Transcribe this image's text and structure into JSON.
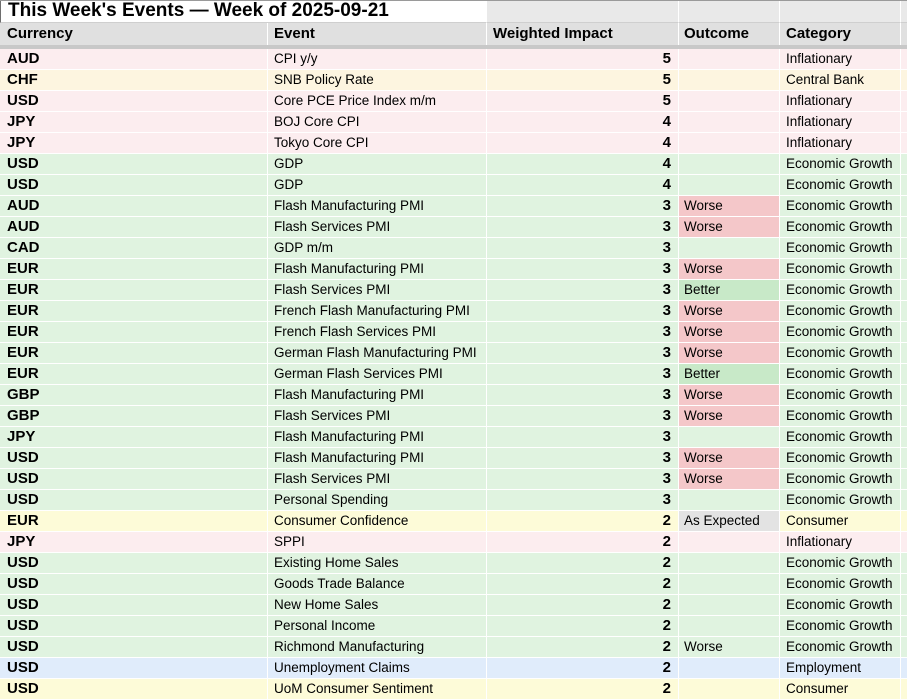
{
  "title": "This Week's Events — Week of 2025-09-21",
  "columns": [
    "Currency",
    "Event",
    "Weighted Impact",
    "Outcome",
    "Category"
  ],
  "colors": {
    "category_row": {
      "Inflationary": "#fcedef",
      "Central Bank": "#fdf5e0",
      "Economic Growth": "#e0f3e0",
      "Consumer": "#fdfbd8",
      "Employment": "#e0ecfb"
    },
    "outcome_badge": {
      "Worse": "#f4c7c9",
      "Better": "#c8e9c8",
      "As Expected": "#e3e3e3"
    },
    "header_bg": "#e0e0e0",
    "title_spacer_bg": "#e9e9e9",
    "divider": "#c8c8c8"
  },
  "rows": [
    {
      "currency": "AUD",
      "event": "CPI y/y",
      "impact": "5",
      "outcome": "",
      "category": "Inflationary"
    },
    {
      "currency": "CHF",
      "event": "SNB Policy Rate",
      "impact": "5",
      "outcome": "",
      "category": "Central Bank"
    },
    {
      "currency": "USD",
      "event": "Core PCE Price Index m/m",
      "impact": "5",
      "outcome": "",
      "category": "Inflationary"
    },
    {
      "currency": "JPY",
      "event": "BOJ Core CPI",
      "impact": "4",
      "outcome": "",
      "category": "Inflationary"
    },
    {
      "currency": "JPY",
      "event": "Tokyo Core CPI",
      "impact": "4",
      "outcome": "",
      "category": "Inflationary"
    },
    {
      "currency": "USD",
      "event": "GDP",
      "impact": "4",
      "outcome": "",
      "category": "Economic Growth"
    },
    {
      "currency": "USD",
      "event": "GDP",
      "impact": "4",
      "outcome": "",
      "category": "Economic Growth"
    },
    {
      "currency": "AUD",
      "event": "Flash Manufacturing PMI",
      "impact": "3",
      "outcome": "Worse",
      "category": "Economic Growth"
    },
    {
      "currency": "AUD",
      "event": "Flash Services PMI",
      "impact": "3",
      "outcome": "Worse",
      "category": "Economic Growth"
    },
    {
      "currency": "CAD",
      "event": "GDP m/m",
      "impact": "3",
      "outcome": "",
      "category": "Economic Growth"
    },
    {
      "currency": "EUR",
      "event": "Flash Manufacturing PMI",
      "impact": "3",
      "outcome": "Worse",
      "category": "Economic Growth"
    },
    {
      "currency": "EUR",
      "event": "Flash Services PMI",
      "impact": "3",
      "outcome": "Better",
      "category": "Economic Growth"
    },
    {
      "currency": "EUR",
      "event": "French Flash Manufacturing PMI",
      "impact": "3",
      "outcome": "Worse",
      "category": "Economic Growth"
    },
    {
      "currency": "EUR",
      "event": "French Flash Services PMI",
      "impact": "3",
      "outcome": "Worse",
      "category": "Economic Growth"
    },
    {
      "currency": "EUR",
      "event": "German Flash Manufacturing PMI",
      "impact": "3",
      "outcome": "Worse",
      "category": "Economic Growth"
    },
    {
      "currency": "EUR",
      "event": "German Flash Services PMI",
      "impact": "3",
      "outcome": "Better",
      "category": "Economic Growth"
    },
    {
      "currency": "GBP",
      "event": "Flash Manufacturing PMI",
      "impact": "3",
      "outcome": "Worse",
      "category": "Economic Growth"
    },
    {
      "currency": "GBP",
      "event": "Flash Services PMI",
      "impact": "3",
      "outcome": "Worse",
      "category": "Economic Growth"
    },
    {
      "currency": "JPY",
      "event": "Flash Manufacturing PMI",
      "impact": "3",
      "outcome": "",
      "category": "Economic Growth"
    },
    {
      "currency": "USD",
      "event": "Flash Manufacturing PMI",
      "impact": "3",
      "outcome": "Worse",
      "category": "Economic Growth"
    },
    {
      "currency": "USD",
      "event": "Flash Services PMI",
      "impact": "3",
      "outcome": "Worse",
      "category": "Economic Growth"
    },
    {
      "currency": "USD",
      "event": "Personal Spending",
      "impact": "3",
      "outcome": "",
      "category": "Economic Growth"
    },
    {
      "currency": "EUR",
      "event": "Consumer Confidence",
      "impact": "2",
      "outcome": "As Expected",
      "category": "Consumer"
    },
    {
      "currency": "JPY",
      "event": "SPPI",
      "impact": "2",
      "outcome": "",
      "category": "Inflationary"
    },
    {
      "currency": "USD",
      "event": "Existing Home Sales",
      "impact": "2",
      "outcome": "",
      "category": "Economic Growth"
    },
    {
      "currency": "USD",
      "event": "Goods Trade Balance",
      "impact": "2",
      "outcome": "",
      "category": "Economic Growth"
    },
    {
      "currency": "USD",
      "event": "New Home Sales",
      "impact": "2",
      "outcome": "",
      "category": "Economic Growth"
    },
    {
      "currency": "USD",
      "event": "Personal Income",
      "impact": "2",
      "outcome": "",
      "category": "Economic Growth"
    },
    {
      "currency": "USD",
      "event": "Richmond Manufacturing",
      "impact": "2",
      "outcome": "Worse",
      "outcome_plain": true,
      "category": "Economic Growth"
    },
    {
      "currency": "USD",
      "event": "Unemployment Claims",
      "impact": "2",
      "outcome": "",
      "category": "Employment"
    },
    {
      "currency": "USD",
      "event": "UoM Consumer Sentiment",
      "impact": "2",
      "outcome": "",
      "category": "Consumer"
    }
  ]
}
